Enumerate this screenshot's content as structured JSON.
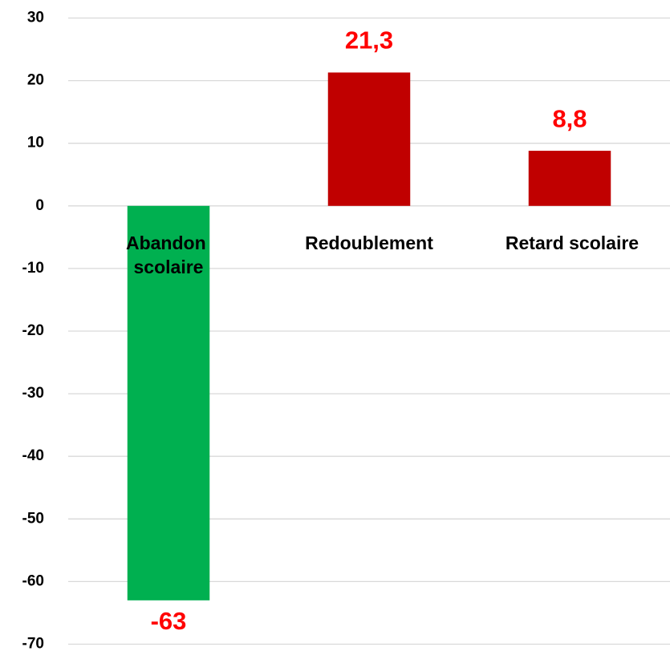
{
  "chart_data": {
    "type": "bar",
    "categories": [
      "Abandon scolaire",
      "Redoublement",
      "Retard scolaire"
    ],
    "values": [
      -63,
      21.3,
      8.8
    ],
    "value_labels": [
      "-63",
      "21,3",
      "8,8"
    ],
    "colors": [
      "#00b050",
      "#c00000",
      "#c00000"
    ],
    "label_color": "#ff0000",
    "ylim": [
      -70,
      30
    ],
    "yticks": [
      -70,
      -60,
      -50,
      -40,
      -30,
      -20,
      -10,
      0,
      10,
      20,
      30
    ],
    "grid": true
  }
}
